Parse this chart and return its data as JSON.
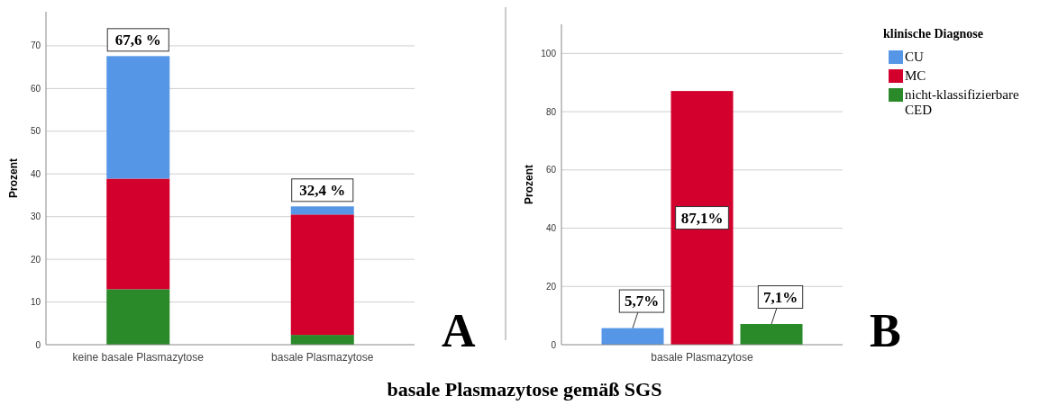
{
  "chart_data": [
    {
      "type": "bar",
      "stacked": true,
      "categories": [
        "keine basale Plasmazytose",
        "basale Plasmazytose"
      ],
      "series": [
        {
          "color": "#2a8a2a",
          "values": [
            13,
            2.3
          ]
        },
        {
          "color": "#d3002d",
          "values": [
            25.9,
            28.2
          ]
        },
        {
          "color": "#5596e6",
          "values": [
            28.7,
            1.9
          ]
        }
      ],
      "totals": [
        "67,6 %",
        "32,4 %"
      ],
      "ylabel": "Prozent",
      "xlabel": "basale Plasmazytose gemäß SGS",
      "ylim": [
        0,
        78
      ],
      "yticks": [
        0,
        10,
        20,
        30,
        40,
        50,
        60,
        70
      ],
      "grid": "y",
      "legend": false,
      "annotations": [
        "A"
      ]
    },
    {
      "type": "bar",
      "categories": [
        "basale Plasmazytose"
      ],
      "legend_title": "klinische Diagnose",
      "series": [
        {
          "name": "CU",
          "color": "#5596e6",
          "values": [
            5.7
          ],
          "value_labels": [
            "5,7%"
          ]
        },
        {
          "name": "MC",
          "color": "#d3002d",
          "values": [
            87.1
          ],
          "value_labels": [
            "87,1%"
          ]
        },
        {
          "name": "nicht-klassifizierbare CED",
          "color": "#2a8a2a",
          "values": [
            7.1
          ],
          "value_labels": [
            "7,1%"
          ]
        }
      ],
      "ylabel": "Prozent",
      "ylim": [
        0,
        110
      ],
      "yticks": [
        0,
        20,
        40,
        60,
        80,
        100
      ],
      "grid": "y",
      "legend": "right",
      "annotations": [
        "B"
      ]
    }
  ]
}
